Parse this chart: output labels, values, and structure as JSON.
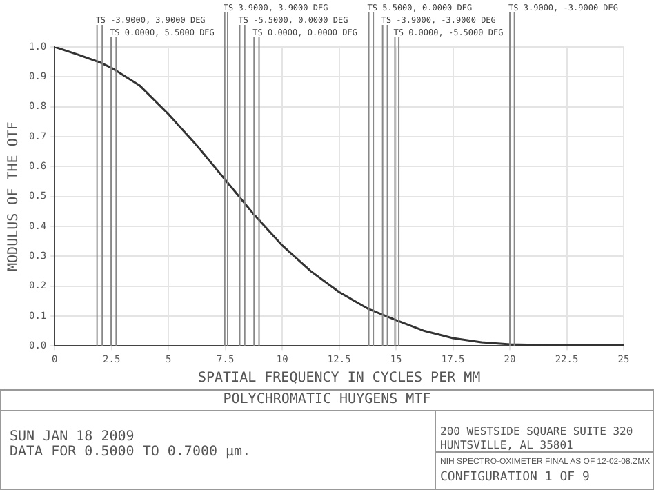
{
  "chart_data": {
    "type": "line",
    "title": "POLYCHROMATIC HUYGENS MTF",
    "xlabel": "SPATIAL FREQUENCY IN CYCLES PER MM",
    "ylabel": "MODULUS OF THE OTF",
    "x": [
      0,
      1,
      2,
      2.5,
      3.75,
      5,
      6.25,
      7.5,
      8.75,
      10,
      11.25,
      12.5,
      13.75,
      15,
      16.25,
      17.5,
      18.75,
      20,
      22.5,
      25
    ],
    "series": [
      {
        "color": "#333333",
        "values": [
          1.0,
          0.975,
          0.948,
          0.93,
          0.87,
          0.775,
          0.67,
          0.555,
          0.44,
          0.336,
          0.25,
          0.18,
          0.125,
          0.086,
          0.05,
          0.026,
          0.012,
          0.005,
          0.002,
          0.002
        ]
      }
    ],
    "xlim": [
      0,
      25
    ],
    "xticks": [
      0,
      2.5,
      5,
      7.5,
      10,
      12.5,
      15,
      17.5,
      20,
      22.5,
      25
    ],
    "ylim": [
      0,
      1
    ],
    "yticks": [
      {
        "value": 0,
        "label": "0.0"
      },
      0.1,
      0.2,
      0.3,
      0.4,
      0.5,
      0.6,
      0.7,
      0.8,
      0.9,
      {
        "value": 1,
        "label": "1.0"
      }
    ],
    "grid": true,
    "marker": "none",
    "line_style": "solid",
    "ref_lines": [
      {
        "axis": "x",
        "value": 1.86,
        "label": "TS -3.9000, 3.9000 DEG",
        "color": "#888888"
      },
      {
        "axis": "x",
        "value": 2.09,
        "label": null,
        "color": "#888888"
      },
      {
        "axis": "x",
        "value": 2.48,
        "label": "TS 0.0000, 5.5000 DEG",
        "color": "#888888"
      },
      {
        "axis": "x",
        "value": 2.7,
        "label": null,
        "color": "#888888"
      },
      {
        "axis": "x",
        "value": 7.47,
        "label": "TS 3.9000, 3.9000 DEG",
        "color": "#888888"
      },
      {
        "axis": "x",
        "value": 7.6,
        "label": null,
        "color": "#888888"
      },
      {
        "axis": "x",
        "value": 8.13,
        "label": "TS -5.5000, 0.0000 DEG",
        "color": "#888888"
      },
      {
        "axis": "x",
        "value": 8.35,
        "label": null,
        "color": "#888888"
      },
      {
        "axis": "x",
        "value": 8.76,
        "label": "TS 0.0000, 0.0000 DEG",
        "color": "#888888"
      },
      {
        "axis": "x",
        "value": 8.98,
        "label": null,
        "color": "#888888"
      },
      {
        "axis": "x",
        "value": 13.8,
        "label": "TS 5.5000, 0.0000 DEG",
        "color": "#888888"
      },
      {
        "axis": "x",
        "value": 14.0,
        "label": null,
        "color": "#888888"
      },
      {
        "axis": "x",
        "value": 14.41,
        "label": "TS -3.9000, -3.9000 DEG",
        "color": "#888888"
      },
      {
        "axis": "x",
        "value": 14.62,
        "label": null,
        "color": "#888888"
      },
      {
        "axis": "x",
        "value": 14.95,
        "label": "TS 0.0000, -5.5000 DEG",
        "color": "#888888"
      },
      {
        "axis": "x",
        "value": 15.12,
        "label": null,
        "color": "#888888"
      },
      {
        "axis": "x",
        "value": 20.0,
        "label": "TS 3.9000, -3.9000 DEG",
        "color": "#888888"
      },
      {
        "axis": "x",
        "value": 20.2,
        "label": null,
        "color": "#888888"
      }
    ],
    "annotations": [
      "SUN JAN 18 2009",
      "DATA FOR 0.5000 TO 0.7000 µm.",
      "200 WESTSIDE SQUARE SUITE 320",
      "HUNTSVILLE, AL 35801",
      "NIH SPECTRO-OXIMETER FINAL AS OF 12-02-08.ZMX",
      "CONFIGURATION 1 OF 9"
    ]
  }
}
